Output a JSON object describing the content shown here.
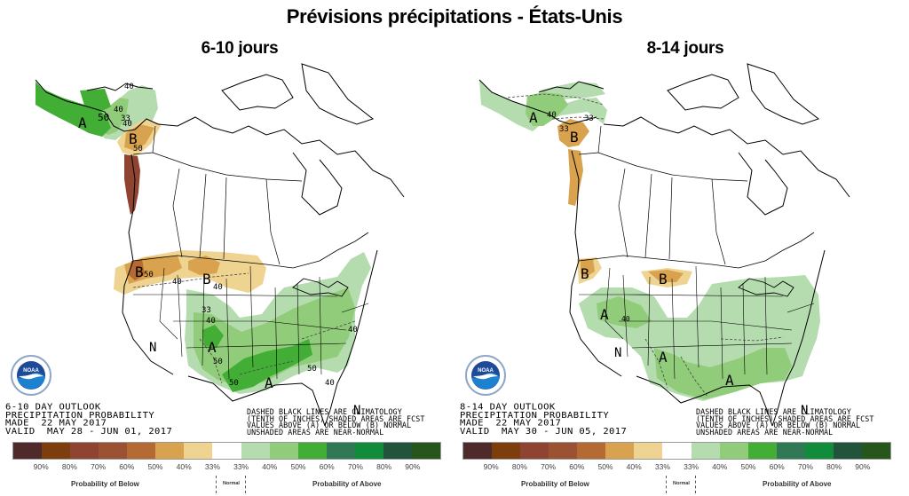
{
  "page_title": "Prévisions précipitations - États-Unis",
  "legend": {
    "colors": [
      "#4e2a2a",
      "#7e3d0c",
      "#8f4331",
      "#9a5232",
      "#b56a33",
      "#d8a24e",
      "#efd391",
      "#ffffff",
      "#b5dcaf",
      "#91cc7a",
      "#43ae36",
      "#2f7a55",
      "#108c3a",
      "#22533b",
      "#26561b"
    ],
    "tick_labels": [
      "90%",
      "80%",
      "70%",
      "60%",
      "50%",
      "40%",
      "33%",
      "33%",
      "40%",
      "50%",
      "60%",
      "70%",
      "80%",
      "90%"
    ],
    "caption_below": "Probability of Below",
    "caption_normal": "Normal",
    "caption_above": "Probability of Above"
  },
  "note_lines": [
    "DASHED BLACK LINES ARE CLIMATOLOGY",
    "(TENTH OF INCHES) SHADED AREAS ARE FCST",
    "VALUES ABOVE (A) OR BELOW (B) NORMAL",
    "UNSHADED AREAS ARE NEAR-NORMAL"
  ],
  "logo_text": "NOAA",
  "panels": [
    {
      "title": "6-10 jours",
      "info": {
        "line1": "6-10 DAY OUTLOOK",
        "line2": "PRECIPITATION PROBABILITY",
        "line3": "MADE  22 MAY 2017",
        "line4": "VALID  MAY 28 - JUN 01, 2017"
      },
      "labels": {
        "alaska_above": "A",
        "alaska_contour_50": "50",
        "alaska_contour_40a": "40",
        "alaska_contour_40b": "40",
        "alaska_contour_33": "33",
        "yukon_below": "B",
        "yukon_40": "40",
        "yukon_50": "50",
        "pnw_below": "B",
        "pnw_50": "50",
        "nw_40": "40",
        "plains_below": "B",
        "plains_40": "40",
        "rockies_33": "33",
        "rockies_40": "40",
        "sw_above": "A",
        "sw_50": "50",
        "south_50": "50",
        "south_above": "A",
        "se_50": "50",
        "se_40": "40",
        "ne_40": "40",
        "west_normal": "N",
        "fl_normal": "N"
      }
    },
    {
      "title": "8-14 jours",
      "info": {
        "line1": "8-14 DAY OUTLOOK",
        "line2": "PRECIPITATION PROBABILITY",
        "line3": "MADE  22 MAY 2017",
        "line4": "VALID  MAY 30 - JUN 05, 2017"
      },
      "labels": {
        "alaska_above": "A",
        "alaska_contour_40": "40",
        "alaska_contour_33": "33",
        "yukon_below": "B",
        "yukon_33": "33",
        "pnw_below": "B",
        "plains_below": "B",
        "nw_above": "A",
        "nw_40": "40",
        "west_normal": "N",
        "sw_above": "A",
        "south_above": "A",
        "fl_normal": "N"
      }
    }
  ]
}
